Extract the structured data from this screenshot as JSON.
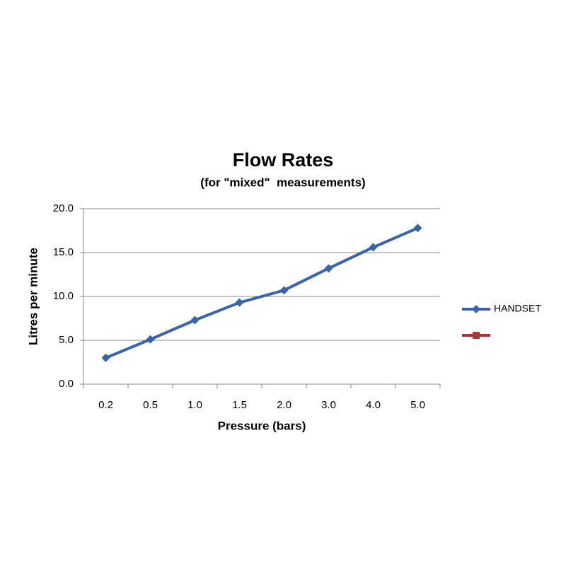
{
  "chart_data": {
    "type": "line",
    "title": "Flow Rates",
    "subtitle": "(for \"mixed\"  measurements)",
    "x_label": "Pressure (bars)",
    "y_label": "Litres per minute",
    "categories": [
      "0.2",
      "0.5",
      "1.0",
      "1.5",
      "2.0",
      "3.0",
      "4.0",
      "5.0"
    ],
    "series": [
      {
        "name": "HANDSET",
        "color": "#3a64a3",
        "marker": "diamond",
        "values": [
          3.0,
          5.1,
          7.3,
          9.3,
          10.7,
          13.2,
          15.6,
          17.8
        ]
      },
      {
        "color": "#a33a3a",
        "marker": "square",
        "values": [
          null,
          null,
          null,
          null,
          null,
          null,
          null,
          null
        ]
      }
    ],
    "ylim": [
      0,
      20
    ],
    "yticks": [
      {
        "value": 0,
        "label": "0.0"
      },
      {
        "value": 5,
        "label": "5.0"
      },
      {
        "value": 10,
        "label": "10.0"
      },
      {
        "value": 15,
        "label": "15.0"
      },
      {
        "value": 20,
        "label": "20.0"
      }
    ],
    "grid": true,
    "legend": "right"
  }
}
